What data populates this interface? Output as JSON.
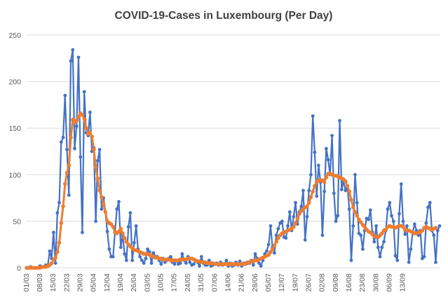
{
  "chart_data": {
    "type": "line",
    "title": "COVID-19-Cases in Luxembourg (Per Day)",
    "xlabel": "",
    "ylabel": "",
    "ylim": [
      0,
      250
    ],
    "yticks": [
      0,
      50,
      100,
      150,
      200,
      250
    ],
    "grid": "horizontal",
    "x_tick_labels": [
      "01/03",
      "08/03",
      "15/03",
      "22/03",
      "29/03",
      "05/04",
      "12/04",
      "19/04",
      "26/04",
      "03/05",
      "10/05",
      "17/05",
      "24/05",
      "31/05",
      "07/06",
      "14/06",
      "21/06",
      "28/06",
      "05/07",
      "12/07",
      "19/07",
      "26/07",
      "02/08",
      "09/08",
      "16/08",
      "23/08",
      "30/08",
      "06/09",
      "13/09"
    ],
    "x_tick_step_days": 7,
    "series": [
      {
        "color": "#4472c4",
        "marker": "circle",
        "values": [
          0,
          0,
          1,
          0,
          0,
          0,
          0,
          2,
          1,
          1,
          3,
          2,
          18,
          10,
          38,
          5,
          59,
          70,
          135,
          140,
          185,
          127,
          78,
          222,
          234,
          128,
          152,
          226,
          119,
          38,
          189,
          145,
          142,
          167,
          125,
          129,
          50,
          115,
          127,
          63,
          75,
          60,
          39,
          20,
          12,
          12,
          39,
          63,
          71,
          22,
          35,
          15,
          8,
          44,
          59,
          8,
          27,
          45,
          20,
          12,
          8,
          5,
          10,
          20,
          17,
          5,
          16,
          12,
          12,
          8,
          4,
          10,
          6,
          8,
          10,
          12,
          6,
          4,
          8,
          4,
          5,
          15,
          8,
          5,
          12,
          6,
          3,
          4,
          8,
          6,
          2,
          12,
          5,
          3,
          3,
          8,
          2,
          3,
          4,
          5,
          3,
          6,
          3,
          4,
          8,
          2,
          5,
          2,
          3,
          6,
          3,
          7,
          2,
          5,
          4,
          6,
          5,
          8,
          3,
          15,
          10,
          5,
          2,
          8,
          15,
          18,
          25,
          45,
          22,
          16,
          35,
          42,
          48,
          50,
          33,
          32,
          45,
          60,
          40,
          55,
          70,
          47,
          60,
          66,
          83,
          30,
          55,
          83,
          100,
          163,
          124,
          77,
          110,
          92,
          35,
          82,
          128,
          116,
          100,
          142,
          80,
          50,
          56,
          158,
          84,
          93,
          83,
          88,
          63,
          8,
          45,
          100,
          70,
          37,
          35,
          20,
          40,
          53,
          52,
          62,
          38,
          28,
          45,
          22,
          12,
          22,
          28,
          40,
          63,
          70,
          56,
          50,
          13,
          8,
          58,
          90,
          50,
          36,
          45,
          6,
          20,
          38,
          47,
          40,
          35,
          40,
          10,
          12,
          48,
          65,
          70,
          40,
          35,
          6,
          40,
          45
        ]
      },
      {
        "color": "#ed7d31",
        "marker": "circle",
        "values": [
          0,
          0,
          0,
          0,
          0,
          0,
          0,
          0,
          1,
          1,
          1,
          2,
          3,
          5,
          9,
          11,
          17,
          27,
          48,
          66,
          90,
          102,
          110,
          140,
          159,
          156,
          158,
          162,
          166,
          164,
          160,
          150,
          144,
          145,
          141,
          127,
          108,
          96,
          83,
          76,
          68,
          60,
          50,
          48,
          47,
          44,
          38,
          37,
          39,
          42,
          37,
          32,
          28,
          25,
          23,
          21,
          19,
          19,
          18,
          17,
          16,
          15,
          15,
          15,
          14,
          13,
          12,
          11,
          11,
          10,
          10,
          9,
          9,
          9,
          9,
          8,
          8,
          8,
          8,
          8,
          9,
          9,
          9,
          9,
          10,
          10,
          10,
          9,
          8,
          7,
          7,
          6,
          6,
          6,
          5,
          5,
          5,
          5,
          4,
          4,
          4,
          4,
          4,
          4,
          4,
          4,
          4,
          4,
          4,
          4,
          4,
          4,
          4,
          4,
          5,
          5,
          6,
          7,
          7,
          8,
          8,
          9,
          10,
          11,
          12,
          13,
          14,
          17,
          20,
          24,
          28,
          32,
          35,
          37,
          38,
          39,
          40,
          41,
          42,
          44,
          48,
          53,
          58,
          61,
          63,
          65,
          66,
          70,
          76,
          82,
          88,
          92,
          94,
          94,
          94,
          92,
          97,
          101,
          101,
          100,
          99,
          99,
          98,
          97,
          96,
          95,
          93,
          88,
          82,
          73,
          65,
          60,
          56,
          52,
          49,
          46,
          44,
          41,
          39,
          38,
          36,
          34,
          33,
          33,
          35,
          37,
          40,
          41,
          44,
          45,
          44,
          44,
          43,
          44,
          45,
          45,
          44,
          41,
          40,
          40,
          39,
          38,
          37,
          37,
          38,
          38,
          40,
          43,
          44,
          43,
          42,
          41,
          42,
          43
        ]
      }
    ]
  }
}
